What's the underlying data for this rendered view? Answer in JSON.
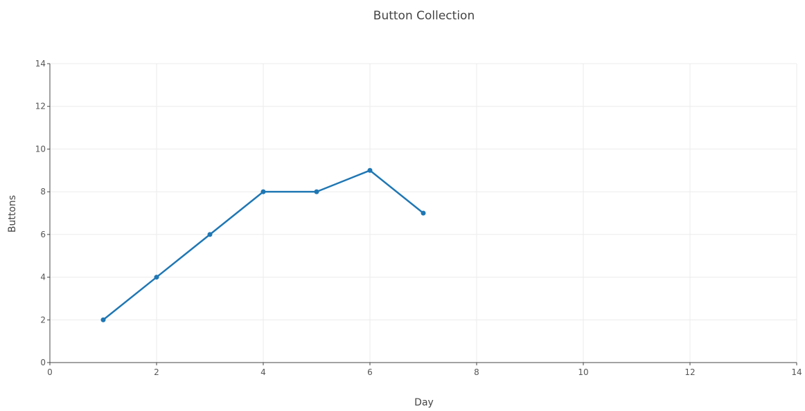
{
  "chart_data": {
    "type": "line",
    "title": "Button Collection",
    "xlabel": "Day",
    "ylabel": "Buttons",
    "xlim": [
      0,
      14
    ],
    "ylim": [
      0,
      14
    ],
    "x_ticks": [
      0,
      2,
      4,
      6,
      8,
      10,
      12,
      14
    ],
    "y_ticks": [
      0,
      2,
      4,
      6,
      8,
      10,
      12,
      14
    ],
    "grid": true,
    "legend": "none",
    "series": [
      {
        "x": [
          1,
          2,
          3,
          4,
          5,
          6,
          7
        ],
        "y": [
          2,
          4,
          6,
          8,
          8,
          9,
          7
        ],
        "color": "#1f77b4",
        "mode": "lines+markers"
      }
    ]
  }
}
